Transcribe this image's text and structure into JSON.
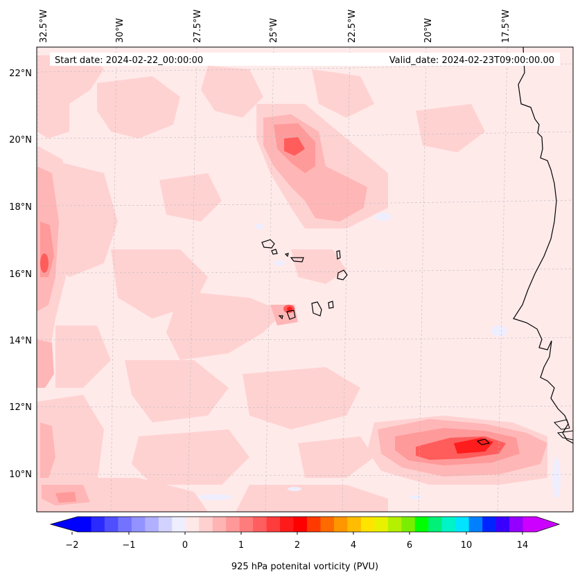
{
  "map": {
    "start_date": "Start date: 2024-02-22_00:00:00",
    "valid_date": "Valid_date: 2024-02-23T09:00:00.00",
    "lon_labels": [
      "32.5°W",
      "30°W",
      "27.5°W",
      "25°W",
      "22.5°W",
      "20°W",
      "17.5°W"
    ],
    "lat_labels": [
      "22°N",
      "20°N",
      "18°N",
      "16°N",
      "14°N",
      "12°N",
      "10°N"
    ],
    "field": "925 hPa potential vorticity"
  },
  "colorbar": {
    "label": "925 hPa potenital vorticity (PVU)",
    "tick_labels": [
      "−2",
      "−1",
      "0",
      "1",
      "2",
      "4",
      "6",
      "10",
      "14"
    ],
    "colors": [
      "#0000ff",
      "#2a2aff",
      "#4f4fff",
      "#7373ff",
      "#9393ff",
      "#b0b0ff",
      "#d2d2ff",
      "#eeeeff",
      "#ffe8e8",
      "#ffd0d0",
      "#ffb4b4",
      "#ff9898",
      "#ff7c7c",
      "#ff5e5e",
      "#ff3c3c",
      "#ff1a1a",
      "#ff0000",
      "#ff3a00",
      "#ff6a00",
      "#ff9600",
      "#ffbc00",
      "#ffe400",
      "#e8f200",
      "#b4f000",
      "#7aee00",
      "#00ff00",
      "#00f078",
      "#00f4c8",
      "#00e4ff",
      "#0080ff",
      "#0024ff",
      "#3a00ff",
      "#9400ff",
      "#cc00ff"
    ],
    "extend_min_color": "#0000ff",
    "extend_max_color": "#cc00ff"
  }
}
